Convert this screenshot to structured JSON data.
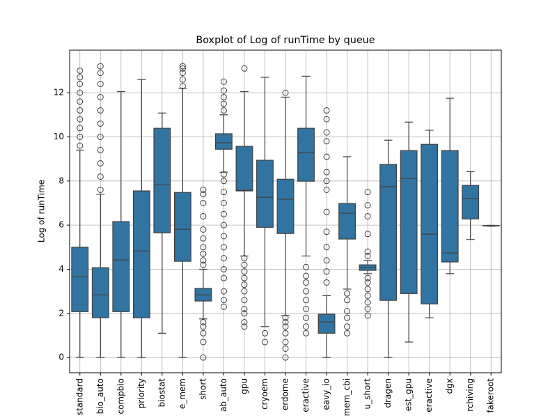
{
  "chart_data": {
    "type": "box",
    "title": "Boxplot of Log of runTime by queue",
    "ylabel": "Log of runTime",
    "categories": [
      "standard",
      "bio_auto",
      "compbio",
      "priority",
      "biostat",
      "e_mem",
      "short",
      "ab_auto",
      "gpu",
      "cryoem",
      "erdome",
      "eractive",
      "eavy_io",
      "mem_cbi",
      "u_short",
      "dragen",
      "est_gpu",
      "eractive",
      "dgx",
      "rchiving",
      "fakeroot"
    ],
    "color": "#3274a1",
    "boxes": [
      {
        "whislo": 0,
        "q1": 2.08,
        "med": 3.66,
        "q3": 5.0,
        "whishi": 9.4,
        "fliers": [
          9.6,
          10.0,
          10.4,
          10.8,
          11.2,
          11.6,
          12.0,
          12.4,
          12.7,
          13.0
        ]
      },
      {
        "whislo": 0,
        "q1": 1.8,
        "med": 2.84,
        "q3": 4.07,
        "whishi": 7.4,
        "fliers": [
          7.6,
          8.2,
          8.8,
          9.4,
          10.0,
          10.6,
          11.2,
          11.8,
          12.4,
          12.9,
          13.2
        ]
      },
      {
        "whislo": 0,
        "q1": 2.08,
        "med": 4.42,
        "q3": 6.16,
        "whishi": 12.05,
        "fliers": []
      },
      {
        "whislo": 0,
        "q1": 1.8,
        "med": 4.83,
        "q3": 7.55,
        "whishi": 12.6,
        "fliers": []
      },
      {
        "whislo": 1.1,
        "q1": 5.65,
        "med": 7.83,
        "q3": 10.39,
        "whishi": 11.08,
        "fliers": []
      },
      {
        "whislo": 0,
        "q1": 4.36,
        "med": 5.81,
        "q3": 7.48,
        "whishi": 12.2,
        "fliers": [
          12.3,
          12.6,
          12.9,
          13.1,
          13.2
        ]
      },
      {
        "whislo": 1.75,
        "q1": 2.56,
        "med": 2.84,
        "q3": 3.13,
        "whishi": 4.0,
        "fliers": [
          0,
          0.7,
          1.1,
          1.4,
          1.6,
          4.2,
          4.4,
          4.7,
          5.0,
          5.4,
          5.8,
          6.4,
          7.0,
          7.4,
          7.6
        ]
      },
      {
        "whislo": 8.4,
        "q1": 9.44,
        "med": 9.73,
        "q3": 10.14,
        "whishi": 11.0,
        "fliers": [
          2.3,
          2.6,
          3.0,
          3.6,
          4.0,
          4.5,
          5.0,
          5.5,
          6.0,
          6.5,
          7.0,
          7.5,
          8.0,
          8.3,
          11.2,
          11.5,
          11.8,
          12.1,
          12.5
        ]
      },
      {
        "whislo": 4.6,
        "q1": 7.55,
        "med": 7.58,
        "q3": 9.57,
        "whishi": 12.05,
        "fliers": [
          1.4,
          1.6,
          2.0,
          2.2,
          2.6,
          3.0,
          3.3,
          3.6,
          3.9,
          4.2,
          4.5,
          13.1
        ]
      },
      {
        "whislo": 1.4,
        "q1": 5.9,
        "med": 7.26,
        "q3": 8.94,
        "whishi": 12.7,
        "fliers": [
          0.7,
          1.1
        ]
      },
      {
        "whislo": 1.9,
        "q1": 5.62,
        "med": 7.17,
        "q3": 8.08,
        "whishi": 11.8,
        "fliers": [
          0,
          0.4,
          0.7,
          1.1,
          1.4,
          1.6,
          1.8,
          12.0
        ]
      },
      {
        "whislo": 4.6,
        "q1": 7.99,
        "med": 9.28,
        "q3": 10.39,
        "whishi": 12.75,
        "fliers": [
          1.1,
          1.4,
          1.8,
          2.2,
          2.6,
          3.0,
          3.4,
          3.7,
          4.1
        ]
      },
      {
        "whislo": 0,
        "q1": 1.1,
        "med": 1.61,
        "q3": 1.96,
        "whishi": 2.8,
        "fliers": [
          3.4,
          3.9,
          4.4,
          5.0,
          5.7,
          6.6,
          7.6,
          8.0,
          8.4,
          9.1,
          9.8,
          10.2,
          10.8,
          11.2
        ]
      },
      {
        "whislo": 3.1,
        "q1": 5.37,
        "med": 6.54,
        "q3": 6.98,
        "whishi": 9.1,
        "fliers": [
          1.1,
          1.4,
          1.8,
          2.1,
          2.6,
          2.9
        ]
      },
      {
        "whislo": 3.8,
        "q1": 3.95,
        "med": 4.07,
        "q3": 4.2,
        "whishi": 4.4,
        "fliers": [
          1.9,
          2.2,
          2.5,
          2.8,
          3.1,
          3.4,
          3.6,
          4.6,
          4.8,
          5.6,
          6.4,
          6.9,
          7.5
        ]
      },
      {
        "whislo": 0,
        "q1": 2.59,
        "med": 7.74,
        "q3": 8.75,
        "whishi": 9.85,
        "fliers": []
      },
      {
        "whislo": 0.7,
        "q1": 2.9,
        "med": 8.12,
        "q3": 9.38,
        "whishi": 10.67,
        "fliers": []
      },
      {
        "whislo": 1.8,
        "q1": 2.43,
        "med": 5.59,
        "q3": 9.66,
        "whishi": 10.3,
        "fliers": []
      },
      {
        "whislo": 3.8,
        "q1": 4.33,
        "med": 4.74,
        "q3": 9.38,
        "whishi": 11.75,
        "fliers": []
      },
      {
        "whislo": 5.35,
        "q1": 6.28,
        "med": 7.2,
        "q3": 7.8,
        "whishi": 8.42,
        "fliers": []
      },
      {
        "whislo": 5.95,
        "q1": 5.96,
        "med": 5.97,
        "q3": 5.98,
        "whishi": 5.99,
        "fliers": []
      }
    ],
    "ylim": [
      -0.69,
      13.93
    ],
    "yticks": [
      0,
      2,
      4,
      6,
      8,
      10,
      12
    ],
    "grid": true
  }
}
